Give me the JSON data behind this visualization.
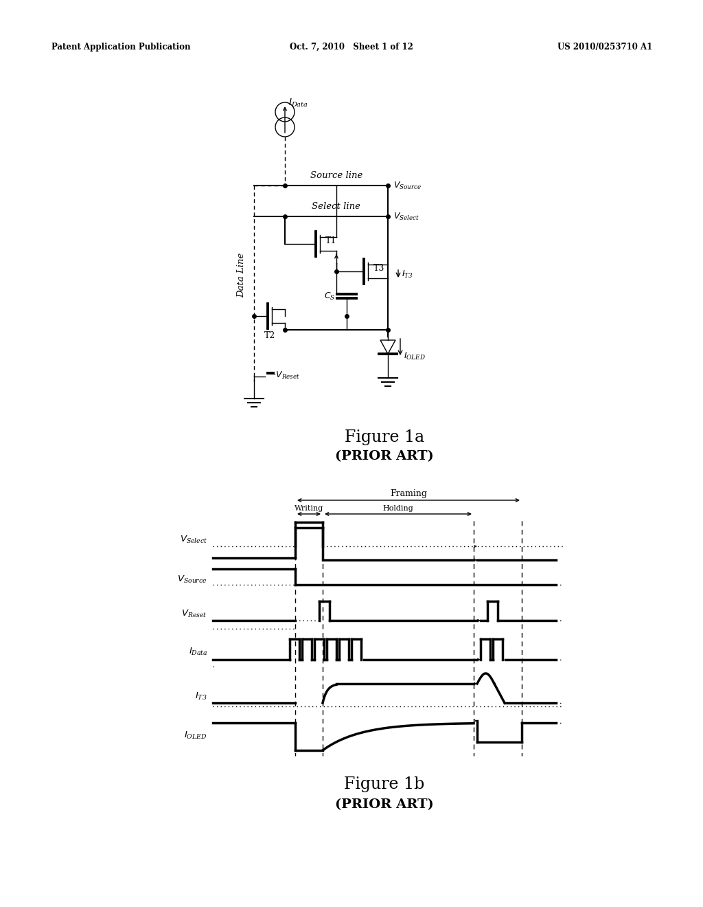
{
  "fig_width": 10.24,
  "fig_height": 13.2,
  "bg_color": "#ffffff",
  "header_left": "Patent Application Publication",
  "header_center": "Oct. 7, 2010   Sheet 1 of 12",
  "header_right": "US 2010/0253710 A1",
  "fig1a_title": "Figure 1a",
  "fig1a_subtitle": "(PRIOR ART)",
  "fig1b_title": "Figure 1b",
  "fig1b_subtitle": "(PRIOR ART)"
}
